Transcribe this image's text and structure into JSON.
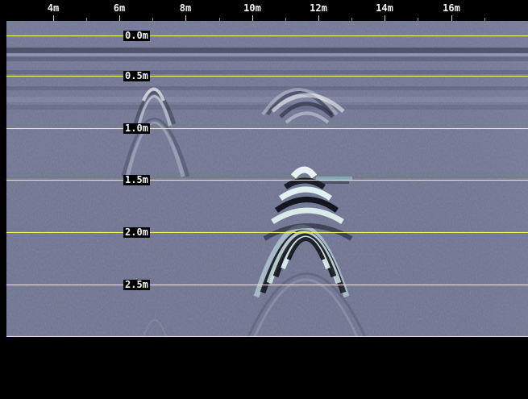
{
  "window": {
    "title": ""
  },
  "distance_axis": {
    "labels": [
      "4m",
      "6m",
      "8m",
      "10m",
      "12m",
      "14m",
      "16m"
    ]
  },
  "depth_axis": {
    "labels": [
      "0.0m",
      "0.5m",
      "1.0m",
      "1.5m",
      "2.0m",
      "2.5m"
    ]
  },
  "colors": {
    "background": "#000000",
    "scan_base": "#676c88",
    "grid_line": "#f2f05b",
    "label_text": "#f3f3f3"
  }
}
